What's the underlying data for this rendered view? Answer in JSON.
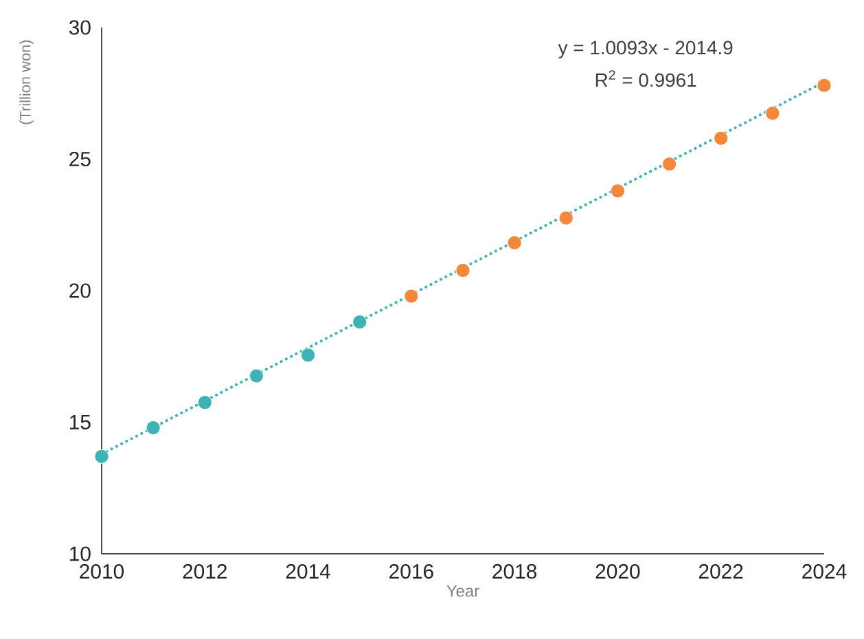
{
  "chart_data": {
    "type": "scatter",
    "xlabel": "Year",
    "ylabel": "(Trillion won)",
    "annotations": [
      "y = 1.0093x - 2014.9",
      "R$^{2}$ = 0.9961"
    ],
    "xlim": [
      2010,
      2024
    ],
    "xticks": [
      2010,
      2012,
      2014,
      2016,
      2018,
      2020,
      2022,
      2024
    ],
    "ylim": [
      10,
      30
    ],
    "yticks": [
      10,
      15,
      20,
      25,
      30
    ],
    "marker": "circle",
    "series": [
      {
        "type": "line",
        "color": "#3cb4b4",
        "marker": "none",
        "line_style": "dotted",
        "x": [
          2010,
          2024
        ],
        "values": [
          13.79,
          27.93
        ]
      },
      {
        "color": "#3cb4b4",
        "x": [
          2010,
          2011,
          2012,
          2013,
          2014,
          2015
        ],
        "values": [
          13.7,
          14.79,
          15.75,
          16.76,
          17.55,
          18.81
        ]
      },
      {
        "color": "#f4873a",
        "x": [
          2016,
          2017,
          2018,
          2019,
          2020,
          2021,
          2022,
          2023,
          2024
        ],
        "values": [
          19.79,
          20.77,
          21.82,
          22.76,
          23.79,
          24.81,
          25.79,
          26.74,
          27.8
        ]
      }
    ]
  }
}
